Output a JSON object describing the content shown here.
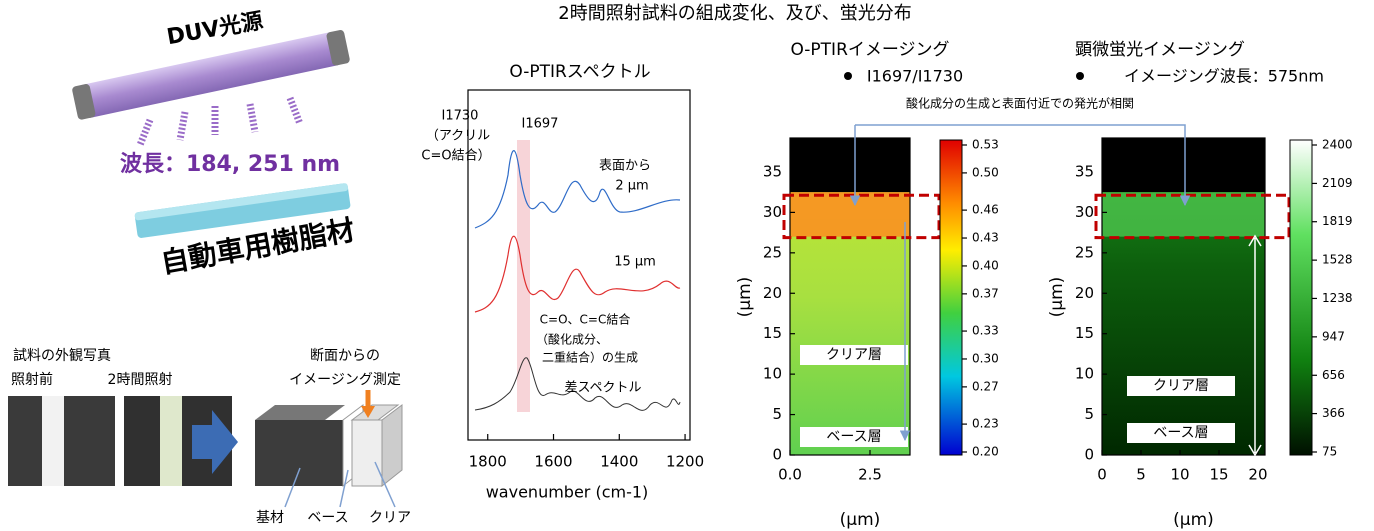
{
  "title": "2時間照射試料の組成変化、及び、蛍光分布",
  "setup": {
    "light_label": "DUV光源",
    "wavelength": "波長：184, 251 nm",
    "material": "自動車用樹脂材",
    "photo_title": "試料の外観写真",
    "photo_before": "照射前",
    "photo_after": "2時間照射",
    "measure_title": [
      "断面からの",
      "イメージング測定"
    ],
    "block_labels": [
      "基材",
      "ベース",
      "クリア"
    ]
  },
  "spectrum": {
    "title": "O-PTIRスペクトル",
    "x_label": "wavenumber (cm-1)",
    "xlim": [
      1860,
      1185
    ],
    "xticks": [
      1800,
      1600,
      1400,
      1200
    ],
    "annotations": [
      "I1730",
      "（アクリル",
      "C=O結合）",
      "I1697",
      "表面から",
      "2 µm",
      "15 µm",
      "C=O、C=C結合",
      "（酸化成分、",
      "二重結合）の生成",
      "差スペクトル"
    ]
  },
  "ptir_map": {
    "title": "O-PTIRイメージング",
    "subtitle": "I1697/I1730",
    "x_label": "(µm)",
    "y_label": "(µm)",
    "xlim": [
      0,
      3.75
    ],
    "xticks": [
      {
        "value": 0,
        "label": "0.0"
      },
      2.5
    ],
    "ylim": [
      0,
      39.2
    ],
    "yticks": [
      0,
      5,
      10,
      15,
      20,
      25,
      30,
      35
    ],
    "clim": [
      0.2,
      0.53
    ],
    "cticks": [
      0.53,
      {
        "value": 0.5,
        "label": "0.50"
      },
      0.46,
      0.43,
      {
        "value": 0.4,
        "label": "0.40"
      },
      0.37,
      0.33,
      {
        "value": 0.3,
        "label": "0.30"
      },
      0.27,
      0.23,
      {
        "value": 0.2,
        "label": "0.20"
      }
    ],
    "layers": [
      "クリア層",
      "ベース層"
    ]
  },
  "fluor_map": {
    "title": "顕微蛍光イメージング",
    "subtitle": "イメージング波長：575nm",
    "x_label": "(µm)",
    "y_label": "(µm)",
    "xlim": [
      0,
      20.9
    ],
    "xticks": [
      0,
      5,
      10,
      15,
      20
    ],
    "ylim": [
      0,
      39.2
    ],
    "yticks": [
      0,
      5,
      10,
      15,
      20,
      25,
      30,
      35
    ],
    "clim": [
      75,
      2400
    ],
    "cticks": [
      2400,
      2109,
      1819,
      1528,
      1238,
      947,
      656,
      366,
      75
    ],
    "layers": [
      "クリア層",
      "ベース層"
    ]
  },
  "correlation_note": "酸化成分の生成と表面付近での発光が相関"
}
